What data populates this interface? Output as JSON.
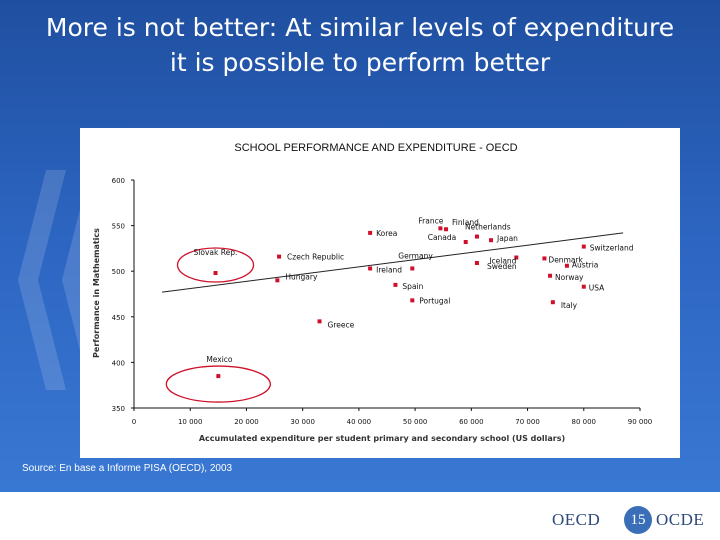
{
  "slide": {
    "title_line1": "More is not better: At similar levels of expenditure",
    "title_line2": "it is possible to perform better"
  },
  "source": "Source: En base a Informe PISA (OECD), 2003",
  "footer": {
    "logo_left": "OECD",
    "page_number": "15",
    "logo_right": "OCDE"
  },
  "colors": {
    "point": "#d0102a",
    "axis": "#111111",
    "text": "#111111",
    "trend": "#222222"
  },
  "chart_data": {
    "type": "scatter",
    "title": "SCHOOL PERFORMANCE AND EXPENDITURE - OECD",
    "xlabel": "Accumulated expenditure per student primary and secondary school (US dollars)",
    "ylabel": "Performance in Mathematics",
    "xlim": [
      0,
      90000
    ],
    "ylim": [
      350,
      600
    ],
    "x_ticks": [
      0,
      10000,
      20000,
      30000,
      40000,
      50000,
      60000,
      70000,
      80000,
      90000
    ],
    "x_tick_labels": [
      "0",
      "10 000",
      "20 000",
      "30 000",
      "40 000",
      "50 000",
      "60 000",
      "70 000",
      "80 000",
      "90 000"
    ],
    "y_ticks": [
      350,
      400,
      450,
      500,
      550,
      600
    ],
    "y_tick_labels": [
      "350",
      "400",
      "450",
      "500",
      "550",
      "600"
    ],
    "points": [
      {
        "label": "Mexico",
        "x": 15000,
        "y": 385
      },
      {
        "label": "Slovak Rep.",
        "x": 14500,
        "y": 498
      },
      {
        "label": "Greece",
        "x": 33000,
        "y": 445
      },
      {
        "label": "Hungary",
        "x": 25500,
        "y": 490
      },
      {
        "label": "Czech Republic",
        "x": 25800,
        "y": 516
      },
      {
        "label": "Korea",
        "x": 42000,
        "y": 542
      },
      {
        "label": "Ireland",
        "x": 42000,
        "y": 503
      },
      {
        "label": "Spain",
        "x": 46500,
        "y": 485
      },
      {
        "label": "Portugal",
        "x": 49500,
        "y": 468
      },
      {
        "label": "France",
        "x": 54500,
        "y": 547
      },
      {
        "label": "Finland",
        "x": 55500,
        "y": 546
      },
      {
        "label": "Germany",
        "x": 49500,
        "y": 503
      },
      {
        "label": "Canada",
        "x": 59000,
        "y": 532
      },
      {
        "label": "Netherlands",
        "x": 61000,
        "y": 538
      },
      {
        "label": "Japan",
        "x": 63500,
        "y": 534
      },
      {
        "label": "Sweden",
        "x": 61000,
        "y": 509
      },
      {
        "label": "Iceland",
        "x": 68000,
        "y": 515
      },
      {
        "label": "Denmark",
        "x": 73000,
        "y": 514
      },
      {
        "label": "Norway",
        "x": 74000,
        "y": 495
      },
      {
        "label": "Austria",
        "x": 77000,
        "y": 506
      },
      {
        "label": "Switzerland",
        "x": 80000,
        "y": 527
      },
      {
        "label": "USA",
        "x": 80000,
        "y": 483
      },
      {
        "label": "Italy",
        "x": 74500,
        "y": 466
      }
    ],
    "trend_line": {
      "x": [
        5000,
        87000
      ],
      "y": [
        477,
        542
      ]
    },
    "highlighted": [
      "Slovak Rep.",
      "Mexico"
    ]
  }
}
